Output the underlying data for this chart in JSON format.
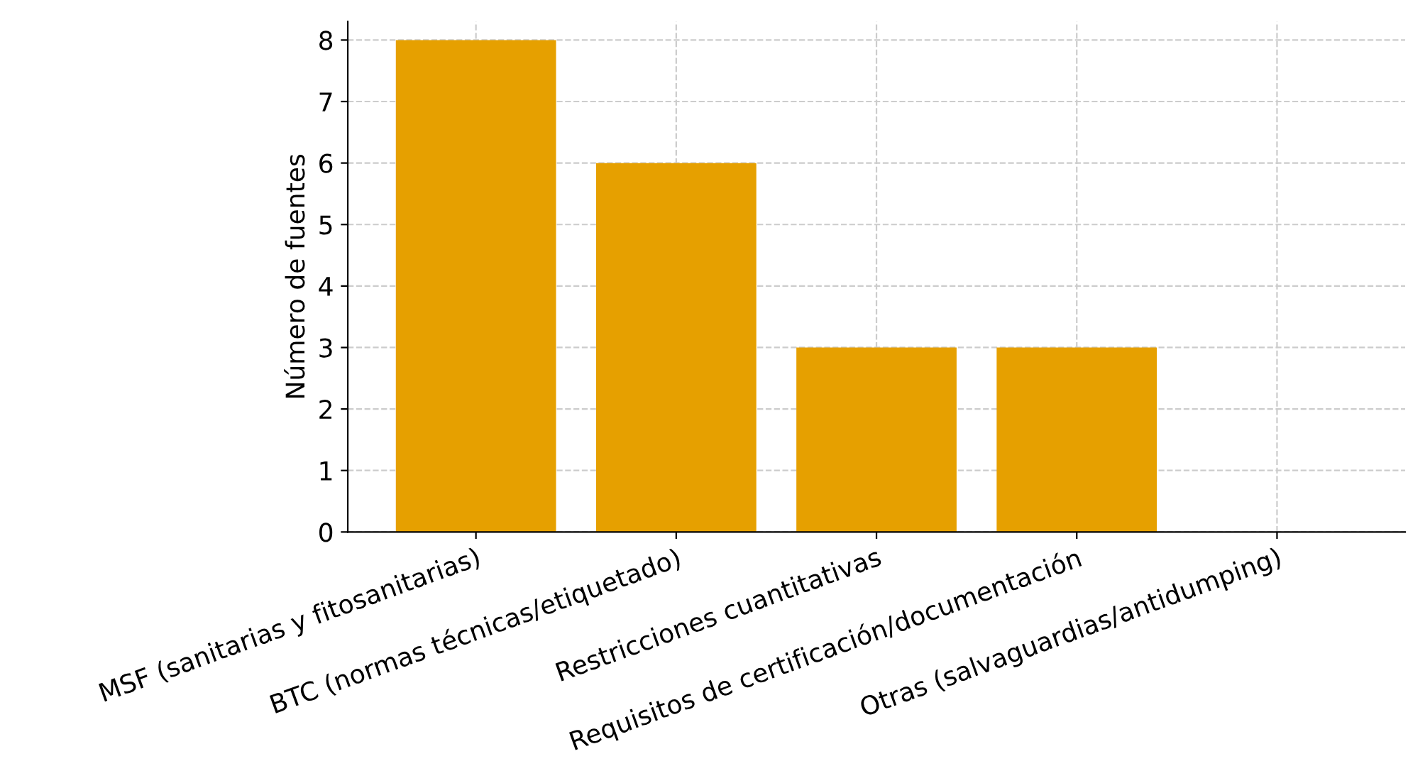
{
  "chart_data": {
    "type": "bar",
    "ylabel": "Número de fuentes",
    "categories": [
      "MSF (sanitarias y fitosanitarias)",
      "BTC (normas técnicas/etiquetado)",
      "Restricciones cuantitativas",
      "Requisitos de certificación/documentación",
      "Otras (salvaguardias/antidumping)"
    ],
    "values": [
      8,
      6,
      3,
      3,
      0
    ],
    "color": "#e6a000",
    "ylim": [
      0,
      8.3
    ],
    "yticks": [
      0,
      1,
      2,
      3,
      4,
      5,
      6,
      7,
      8
    ],
    "grid": true,
    "line_style": "dashed"
  }
}
